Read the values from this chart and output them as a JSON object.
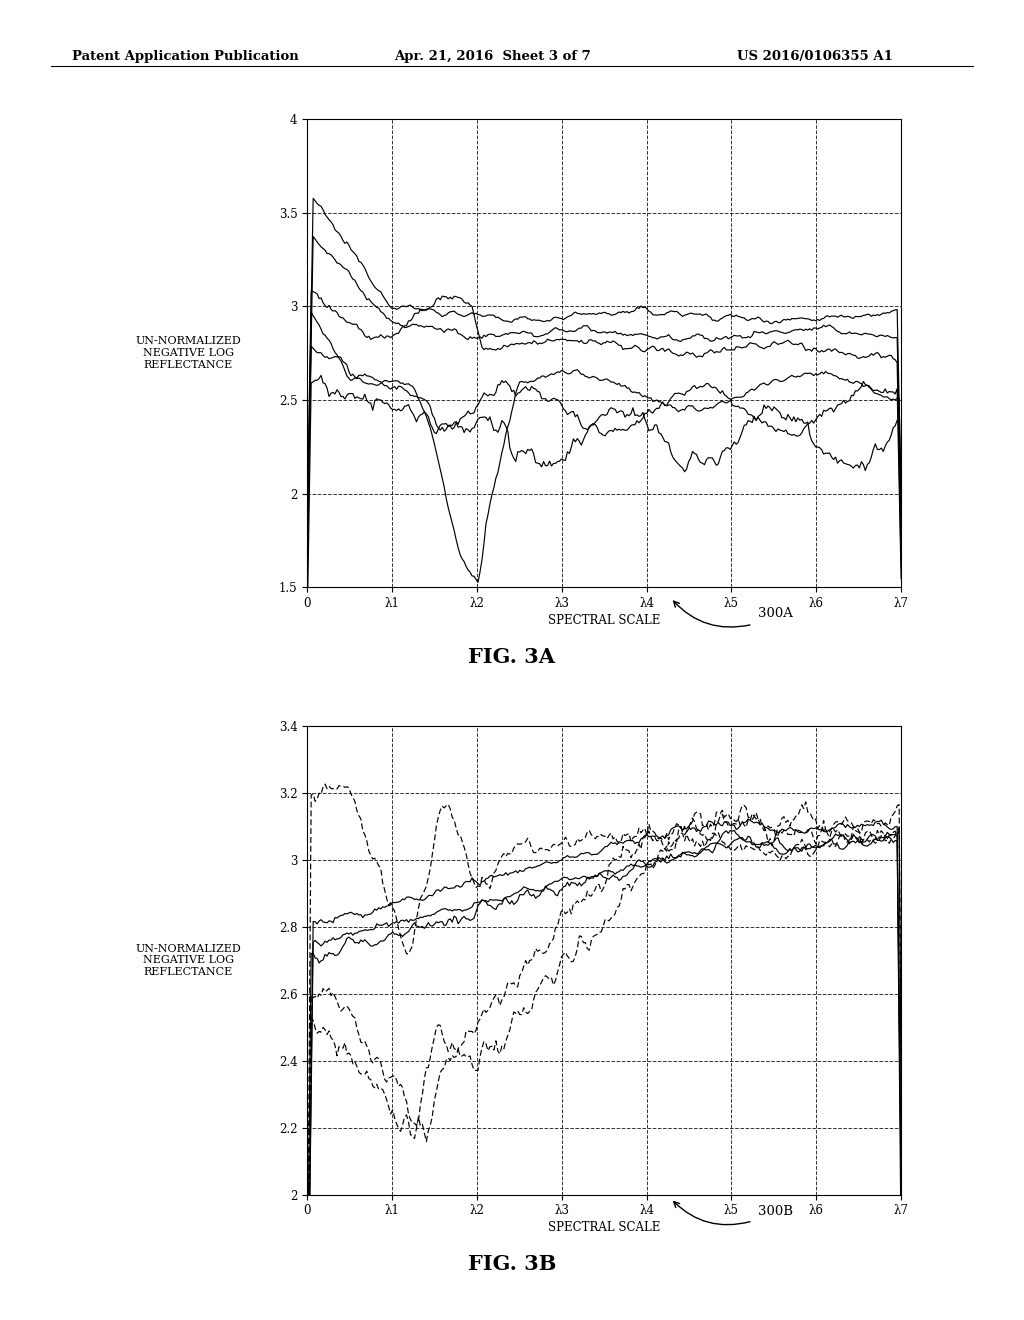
{
  "header_left": "Patent Application Publication",
  "header_center": "Apr. 21, 2016  Sheet 3 of 7",
  "header_right": "US 2016/0106355 A1",
  "fig3a_label": "FIG. 3A",
  "fig3b_label": "FIG. 3B",
  "ref_3a": "300A",
  "ref_3b": "300B",
  "ylabel": "UN-NORMALIZED\nNEGATIVE LOG\nREFLECTANCE",
  "xlabel": "SPECTRAL SCALE",
  "xtick_labels": [
    "0",
    "λ1",
    "λ2",
    "λ3",
    "λ4",
    "λ5",
    "λ6",
    "λ7"
  ],
  "fig3a_ylim": [
    1.5,
    4.0
  ],
  "fig3a_yticks": [
    1.5,
    2.0,
    2.5,
    3.0,
    3.5,
    4.0
  ],
  "fig3b_ylim": [
    2.0,
    3.4
  ],
  "fig3b_yticks": [
    2.0,
    2.2,
    2.4,
    2.6,
    2.8,
    3.0,
    3.2,
    3.4
  ],
  "background_color": "#ffffff",
  "line_color": "#000000"
}
